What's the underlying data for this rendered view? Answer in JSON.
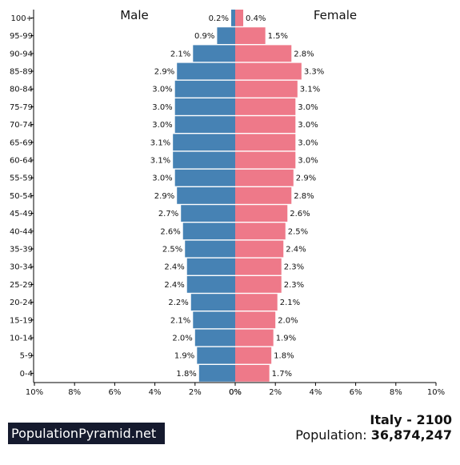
{
  "chart_data": {
    "type": "bar",
    "orientation": "horizontal-pyramid",
    "categories": [
      "100+",
      "95-99",
      "90-94",
      "85-89",
      "80-84",
      "75-79",
      "70-74",
      "65-69",
      "60-64",
      "55-59",
      "50-54",
      "45-49",
      "40-44",
      "35-39",
      "30-34",
      "25-29",
      "20-24",
      "15-19",
      "10-14",
      "5-9",
      "0-4"
    ],
    "series": [
      {
        "name": "Male",
        "color": "#4682b4",
        "values": [
          0.2,
          0.9,
          2.1,
          2.9,
          3.0,
          3.0,
          3.0,
          3.1,
          3.1,
          3.0,
          2.9,
          2.7,
          2.6,
          2.5,
          2.4,
          2.4,
          2.2,
          2.1,
          2.0,
          1.9,
          1.8
        ],
        "labels": [
          "0.2%",
          "0.9%",
          "2.1%",
          "2.9%",
          "3.0%",
          "3.0%",
          "3.0%",
          "3.1%",
          "3.1%",
          "3.0%",
          "2.9%",
          "2.7%",
          "2.6%",
          "2.5%",
          "2.4%",
          "2.4%",
          "2.2%",
          "2.1%",
          "2.0%",
          "1.9%",
          "1.8%"
        ]
      },
      {
        "name": "Female",
        "color": "#ee7989",
        "values": [
          0.4,
          1.5,
          2.8,
          3.3,
          3.1,
          3.0,
          3.0,
          3.0,
          3.0,
          2.9,
          2.8,
          2.6,
          2.5,
          2.4,
          2.3,
          2.3,
          2.1,
          2.0,
          1.9,
          1.8,
          1.7
        ],
        "labels": [
          "0.4%",
          "1.5%",
          "2.8%",
          "3.3%",
          "3.1%",
          "3.0%",
          "3.0%",
          "3.0%",
          "3.0%",
          "2.9%",
          "2.8%",
          "2.6%",
          "2.5%",
          "2.4%",
          "2.3%",
          "2.3%",
          "2.1%",
          "2.0%",
          "1.9%",
          "1.8%",
          "1.7%"
        ]
      }
    ],
    "xlim": [
      0,
      10
    ],
    "xticks": {
      "left": [
        "10%",
        "8%",
        "6%",
        "4%",
        "2%",
        "0%"
      ],
      "right": [
        "0%",
        "2%",
        "4%",
        "6%",
        "8%",
        "10%"
      ]
    },
    "title": ""
  },
  "footer": {
    "brand": "PopulationPyramid.net",
    "country_year": "Italy - 2100",
    "population_label": "Population:",
    "population_value": "36,874,247"
  }
}
